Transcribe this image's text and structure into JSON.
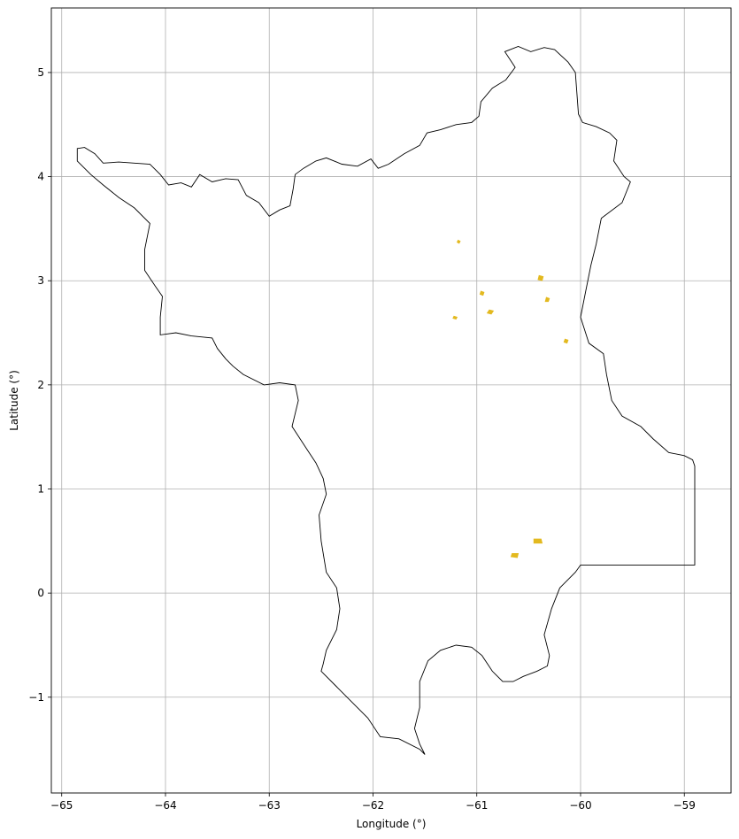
{
  "chart_data": {
    "type": "map",
    "title": "",
    "xlabel": "Longitude (°)",
    "ylabel": "Latitude (°)",
    "xlim": [
      -65.1,
      -58.55
    ],
    "ylim": [
      -1.92,
      5.62
    ],
    "grid": true,
    "xticks": [
      -65,
      -64,
      -63,
      -62,
      -61,
      -60,
      -59
    ],
    "yticks": [
      -1,
      0,
      1,
      2,
      3,
      4,
      5
    ],
    "xtick_labels": [
      "−65",
      "−64",
      "−63",
      "−62",
      "−61",
      "−60",
      "−59"
    ],
    "ytick_labels": [
      "−1",
      "0",
      "1",
      "2",
      "3",
      "4",
      "5"
    ],
    "colors": {
      "outline": "#000000",
      "patches": "#e3b91f",
      "grid": "#b0b0b0"
    },
    "outline": [
      [
        -64.85,
        4.27
      ],
      [
        -64.78,
        4.28
      ],
      [
        -64.68,
        4.22
      ],
      [
        -64.6,
        4.13
      ],
      [
        -64.45,
        4.14
      ],
      [
        -64.3,
        4.13
      ],
      [
        -64.15,
        4.12
      ],
      [
        -64.05,
        4.02
      ],
      [
        -63.97,
        3.92
      ],
      [
        -63.85,
        3.94
      ],
      [
        -63.75,
        3.9
      ],
      [
        -63.67,
        4.02
      ],
      [
        -63.55,
        3.95
      ],
      [
        -63.42,
        3.98
      ],
      [
        -63.3,
        3.97
      ],
      [
        -63.22,
        3.82
      ],
      [
        -63.1,
        3.75
      ],
      [
        -63.0,
        3.62
      ],
      [
        -62.9,
        3.68
      ],
      [
        -62.8,
        3.72
      ],
      [
        -62.77,
        3.88
      ],
      [
        -62.75,
        4.02
      ],
      [
        -62.67,
        4.08
      ],
      [
        -62.55,
        4.15
      ],
      [
        -62.45,
        4.18
      ],
      [
        -62.3,
        4.12
      ],
      [
        -62.15,
        4.1
      ],
      [
        -62.02,
        4.17
      ],
      [
        -61.95,
        4.08
      ],
      [
        -61.85,
        4.12
      ],
      [
        -61.7,
        4.22
      ],
      [
        -61.55,
        4.3
      ],
      [
        -61.48,
        4.42
      ],
      [
        -61.35,
        4.45
      ],
      [
        -61.2,
        4.5
      ],
      [
        -61.05,
        4.52
      ],
      [
        -60.98,
        4.58
      ],
      [
        -60.96,
        4.72
      ],
      [
        -60.85,
        4.85
      ],
      [
        -60.72,
        4.93
      ],
      [
        -60.63,
        5.05
      ],
      [
        -60.73,
        5.2
      ],
      [
        -60.6,
        5.25
      ],
      [
        -60.48,
        5.2
      ],
      [
        -60.35,
        5.24
      ],
      [
        -60.25,
        5.22
      ],
      [
        -60.12,
        5.1
      ],
      [
        -60.05,
        5.0
      ],
      [
        -60.02,
        4.6
      ],
      [
        -59.98,
        4.52
      ],
      [
        -59.85,
        4.48
      ],
      [
        -59.72,
        4.42
      ],
      [
        -59.65,
        4.35
      ],
      [
        -59.68,
        4.15
      ],
      [
        -59.58,
        4.0
      ],
      [
        -59.52,
        3.95
      ],
      [
        -59.6,
        3.75
      ],
      [
        -59.8,
        3.6
      ],
      [
        -59.85,
        3.35
      ],
      [
        -59.9,
        3.15
      ],
      [
        -59.95,
        2.9
      ],
      [
        -60.0,
        2.65
      ],
      [
        -59.92,
        2.4
      ],
      [
        -59.78,
        2.3
      ],
      [
        -59.75,
        2.1
      ],
      [
        -59.7,
        1.85
      ],
      [
        -59.6,
        1.7
      ],
      [
        -59.42,
        1.6
      ],
      [
        -59.3,
        1.48
      ],
      [
        -59.15,
        1.35
      ],
      [
        -59.0,
        1.32
      ],
      [
        -58.92,
        1.28
      ],
      [
        -58.9,
        1.22
      ],
      [
        -58.9,
        0.27
      ],
      [
        -60.0,
        0.27
      ],
      [
        -60.05,
        0.2
      ],
      [
        -60.2,
        0.05
      ],
      [
        -60.28,
        -0.15
      ],
      [
        -60.35,
        -0.4
      ],
      [
        -60.3,
        -0.6
      ],
      [
        -60.32,
        -0.7
      ],
      [
        -60.42,
        -0.75
      ],
      [
        -60.55,
        -0.8
      ],
      [
        -60.65,
        -0.85
      ],
      [
        -60.75,
        -0.85
      ],
      [
        -60.85,
        -0.75
      ],
      [
        -60.95,
        -0.6
      ],
      [
        -61.05,
        -0.52
      ],
      [
        -61.2,
        -0.5
      ],
      [
        -61.35,
        -0.55
      ],
      [
        -61.47,
        -0.65
      ],
      [
        -61.55,
        -0.85
      ],
      [
        -61.55,
        -1.1
      ],
      [
        -61.6,
        -1.3
      ],
      [
        -61.55,
        -1.45
      ],
      [
        -61.5,
        -1.55
      ],
      [
        -61.55,
        -1.5
      ],
      [
        -61.75,
        -1.4
      ],
      [
        -61.93,
        -1.38
      ],
      [
        -62.05,
        -1.2
      ],
      [
        -62.2,
        -1.05
      ],
      [
        -62.35,
        -0.9
      ],
      [
        -62.5,
        -0.75
      ],
      [
        -62.48,
        -0.68
      ],
      [
        -62.45,
        -0.55
      ],
      [
        -62.35,
        -0.35
      ],
      [
        -62.32,
        -0.15
      ],
      [
        -62.35,
        0.05
      ],
      [
        -62.45,
        0.2
      ],
      [
        -62.5,
        0.5
      ],
      [
        -62.52,
        0.75
      ],
      [
        -62.45,
        0.95
      ],
      [
        -62.48,
        1.1
      ],
      [
        -62.55,
        1.25
      ],
      [
        -62.65,
        1.4
      ],
      [
        -62.78,
        1.6
      ],
      [
        -62.72,
        1.85
      ],
      [
        -62.75,
        2.0
      ],
      [
        -62.9,
        2.02
      ],
      [
        -63.05,
        2.0
      ],
      [
        -63.25,
        2.1
      ],
      [
        -63.35,
        2.18
      ],
      [
        -63.42,
        2.25
      ],
      [
        -63.5,
        2.35
      ],
      [
        -63.55,
        2.45
      ],
      [
        -63.75,
        2.47
      ],
      [
        -63.9,
        2.5
      ],
      [
        -64.05,
        2.48
      ],
      [
        -64.05,
        2.65
      ],
      [
        -64.03,
        2.85
      ],
      [
        -64.1,
        2.95
      ],
      [
        -64.2,
        3.1
      ],
      [
        -64.2,
        3.3
      ],
      [
        -64.15,
        3.55
      ],
      [
        -64.3,
        3.7
      ],
      [
        -64.45,
        3.8
      ],
      [
        -64.6,
        3.92
      ],
      [
        -64.72,
        4.02
      ],
      [
        -64.85,
        4.15
      ],
      [
        -64.85,
        4.27
      ]
    ],
    "patches": [
      [
        [
          -60.45,
          0.52
        ],
        [
          -60.38,
          0.52
        ],
        [
          -60.37,
          0.48
        ],
        [
          -60.45,
          0.48
        ]
      ],
      [
        [
          -60.66,
          0.38
        ],
        [
          -60.6,
          0.38
        ],
        [
          -60.61,
          0.34
        ],
        [
          -60.67,
          0.35
        ]
      ],
      [
        [
          -60.4,
          3.05
        ],
        [
          -60.36,
          3.04
        ],
        [
          -60.37,
          3.0
        ],
        [
          -60.41,
          3.01
        ]
      ],
      [
        [
          -60.33,
          2.84
        ],
        [
          -60.3,
          2.83
        ],
        [
          -60.31,
          2.8
        ],
        [
          -60.34,
          2.8
        ]
      ],
      [
        [
          -60.88,
          2.72
        ],
        [
          -60.84,
          2.71
        ],
        [
          -60.86,
          2.68
        ],
        [
          -60.9,
          2.69
        ]
      ],
      [
        [
          -60.96,
          2.9
        ],
        [
          -60.93,
          2.89
        ],
        [
          -60.94,
          2.86
        ],
        [
          -60.97,
          2.87
        ]
      ],
      [
        [
          -61.22,
          2.66
        ],
        [
          -61.19,
          2.65
        ],
        [
          -61.2,
          2.63
        ],
        [
          -61.23,
          2.64
        ]
      ],
      [
        [
          -60.15,
          2.44
        ],
        [
          -60.12,
          2.43
        ],
        [
          -60.13,
          2.4
        ],
        [
          -60.16,
          2.41
        ]
      ],
      [
        [
          -61.18,
          3.39
        ],
        [
          -61.16,
          3.38
        ],
        [
          -61.17,
          3.36
        ],
        [
          -61.19,
          3.37
        ]
      ]
    ]
  }
}
